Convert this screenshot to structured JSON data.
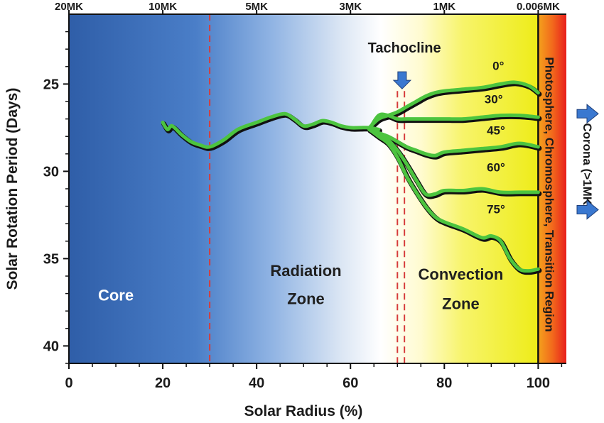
{
  "chart_data": {
    "type": "line",
    "title": "",
    "xlabel": "Solar Radius (%)",
    "ylabel": "Solar Rotation Period (Days)",
    "xlim": [
      0,
      106
    ],
    "ylim": [
      41,
      21
    ],
    "y_inverted": true,
    "x_ticks": [
      0,
      20,
      40,
      60,
      80,
      100
    ],
    "y_ticks": [
      25,
      30,
      35,
      40
    ],
    "top_axis": {
      "ticks": [
        {
          "x": 0,
          "label": "20MK"
        },
        {
          "x": 20,
          "label": "10MK"
        },
        {
          "x": 40,
          "label": "5MK"
        },
        {
          "x": 60,
          "label": "3MK"
        },
        {
          "x": 80,
          "label": "1MK"
        },
        {
          "x": 100,
          "label": "0.006MK"
        }
      ]
    },
    "zones": [
      {
        "label_line1": "Core",
        "label_line2": "",
        "color": "#ffffff"
      },
      {
        "label_line1": "Radiation",
        "label_line2": "Zone",
        "color": "#1f1f1f"
      },
      {
        "label_line1": "Convection",
        "label_line2": "Zone",
        "color": "#1f1f1f"
      }
    ],
    "core_boundary_x": 30,
    "tachocline_x": [
      70,
      71.5
    ],
    "surface_x": 100,
    "tachocline_label": "Tachocline",
    "surface_label": "Photosphere, Chromosphere, Transition Region",
    "corona_label": "Corona (>1MK)",
    "interior_series": {
      "name": "",
      "x": [
        20,
        21,
        22,
        24,
        26,
        28,
        30,
        33,
        36,
        40,
        43,
        46,
        48,
        50,
        52,
        54,
        56,
        58,
        60,
        62,
        64,
        66
      ],
      "y": [
        27.2,
        27.6,
        27.4,
        27.9,
        28.3,
        28.5,
        28.6,
        28.2,
        27.6,
        27.2,
        26.9,
        26.7,
        27.0,
        27.4,
        27.3,
        27.1,
        27.2,
        27.4,
        27.5,
        27.5,
        27.5,
        27.6
      ]
    },
    "series": [
      {
        "name": "0°",
        "x": [
          64,
          66,
          68,
          70,
          72,
          74,
          76,
          78,
          80,
          84,
          88,
          92,
          95,
          98,
          100
        ],
        "y": [
          27.5,
          27.0,
          26.8,
          26.6,
          26.3,
          26.0,
          25.7,
          25.5,
          25.4,
          25.3,
          25.2,
          25.0,
          24.9,
          25.1,
          25.5
        ]
      },
      {
        "name": "30°",
        "x": [
          64,
          66,
          68,
          70,
          72,
          74,
          76,
          78,
          80,
          84,
          88,
          92,
          96,
          100
        ],
        "y": [
          27.6,
          26.8,
          26.8,
          27.0,
          27.0,
          27.0,
          27.0,
          27.0,
          27.0,
          27.0,
          26.9,
          26.8,
          26.8,
          26.9
        ]
      },
      {
        "name": "45°",
        "x": [
          64,
          66,
          68,
          70,
          72,
          74,
          76,
          78,
          80,
          84,
          88,
          92,
          96,
          100
        ],
        "y": [
          27.6,
          27.8,
          28.0,
          28.3,
          28.6,
          28.8,
          29.0,
          29.1,
          28.9,
          28.8,
          28.7,
          28.6,
          28.4,
          28.6
        ]
      },
      {
        "name": "60°",
        "x": [
          64,
          66,
          68,
          70,
          72,
          74,
          76,
          78,
          80,
          84,
          88,
          92,
          96,
          100
        ],
        "y": [
          27.6,
          27.9,
          28.2,
          28.8,
          29.6,
          30.5,
          31.3,
          31.3,
          31.1,
          31.1,
          31.0,
          31.2,
          31.2,
          31.2
        ]
      },
      {
        "name": "75°",
        "x": [
          64,
          66,
          68,
          70,
          72,
          74,
          76,
          78,
          80,
          84,
          88,
          90,
          92,
          94,
          96,
          98,
          100
        ],
        "y": [
          27.6,
          28.0,
          28.4,
          29.2,
          30.3,
          31.2,
          32.0,
          32.6,
          32.9,
          33.3,
          33.8,
          33.7,
          34.0,
          35.0,
          35.6,
          35.7,
          35.6
        ]
      }
    ],
    "colors": {
      "curve": "#4cc43f",
      "curve_shadow": "#111111",
      "core_blue": "#2f5ea8",
      "mid_blue": "#5a8dd6",
      "white": "#ffffff",
      "yellow": "#f3f020",
      "surface_red": "#ee3a1c",
      "surface_orange": "#f28a1c",
      "boundary_dash": "#d63b3b",
      "arrow": "#3a78d0"
    },
    "grid": false,
    "legend": "none"
  }
}
